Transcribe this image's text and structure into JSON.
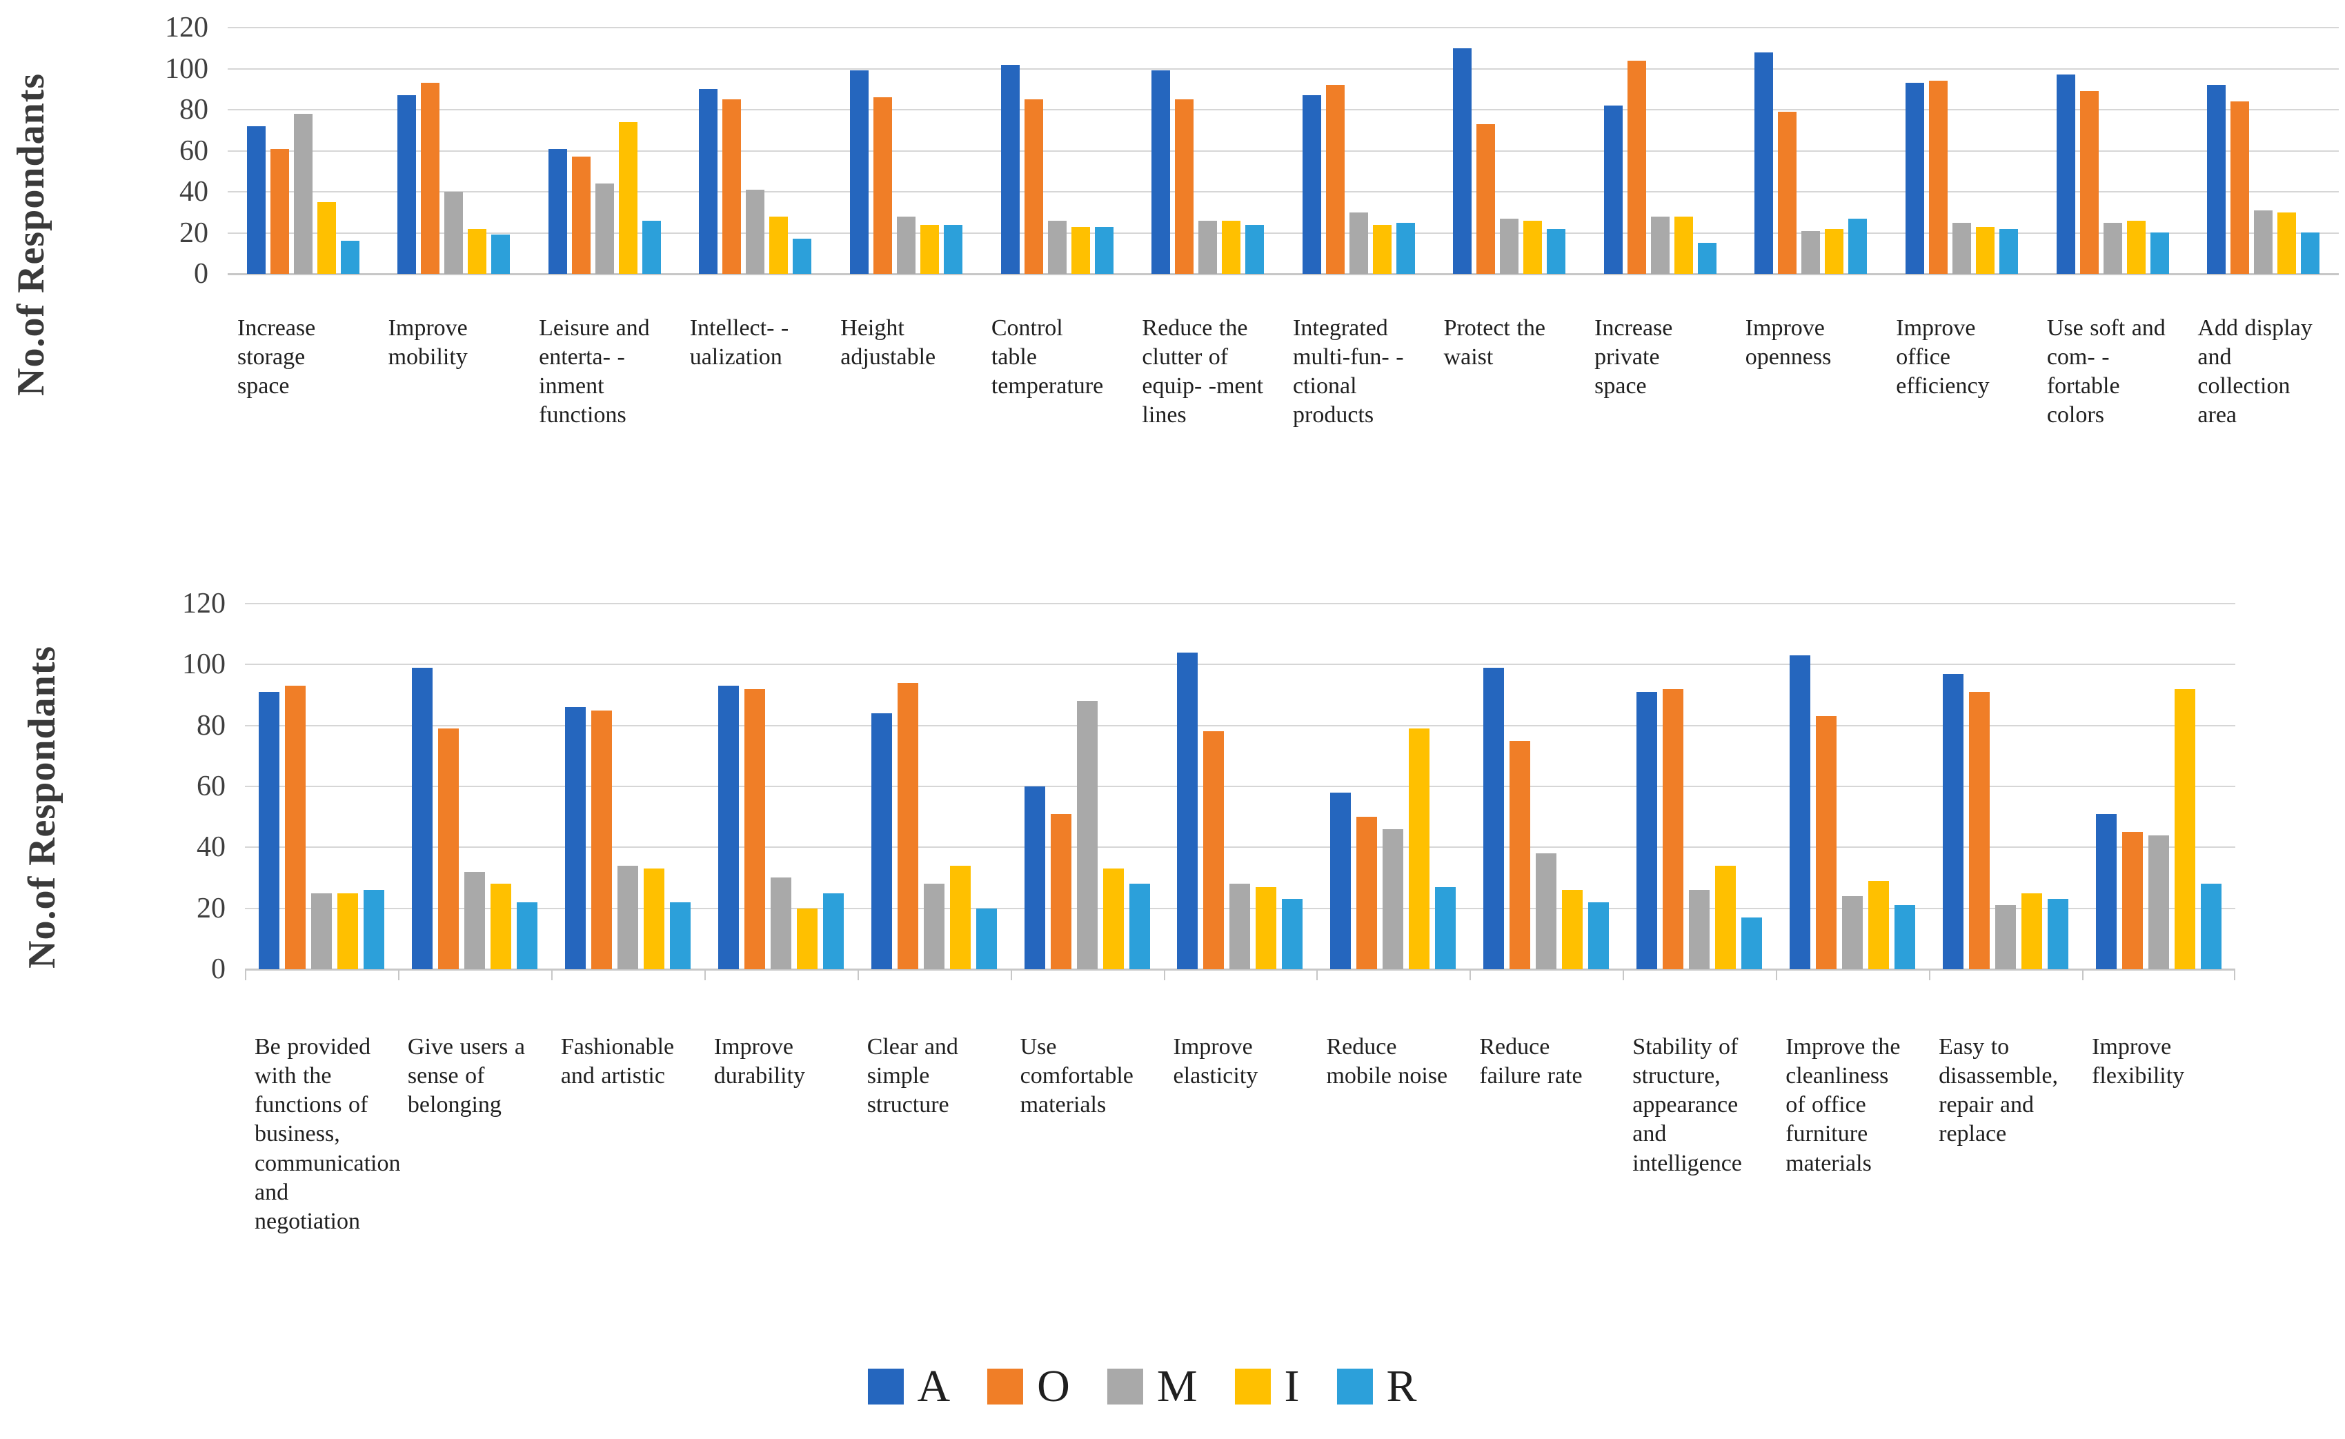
{
  "colors": {
    "grid": "#d6d6d6",
    "axis": "#c7c7c7",
    "text": "#262626"
  },
  "chart_data": [
    {
      "type": "bar",
      "title": "",
      "xlabel": "",
      "ylabel": "No.of Respondants",
      "ylim": [
        0,
        120
      ],
      "yticks": [
        0,
        20,
        40,
        60,
        80,
        100,
        120
      ],
      "grid": true,
      "legend_position": "bottom-shared",
      "categories": [
        "Increase storage space",
        "Improve mobility",
        "Leisure and enterta- -inment functions",
        "Intellect- -ualization",
        "Height adjustable",
        "Control table temperature",
        "Reduce the clutter of equip- -ment lines",
        "Integrated multi-fun- -ctional products",
        "Protect the waist",
        "Increase private space",
        "Improve openness",
        "Improve office efficiency",
        "Use soft and com- -fortable colors",
        "Add display and collection area"
      ],
      "series": [
        {
          "name": "A",
          "color": "#2566be",
          "values": [
            72,
            87,
            61,
            90,
            99,
            102,
            99,
            87,
            110,
            82,
            108,
            93,
            97,
            92
          ]
        },
        {
          "name": "O",
          "color": "#f07e27",
          "values": [
            61,
            93,
            57,
            85,
            86,
            85,
            85,
            92,
            73,
            104,
            79,
            94,
            89,
            84
          ]
        },
        {
          "name": "M",
          "color": "#a9a9a9",
          "values": [
            78,
            40,
            44,
            41,
            28,
            26,
            26,
            30,
            27,
            28,
            21,
            25,
            25,
            31
          ]
        },
        {
          "name": "I",
          "color": "#ffc000",
          "values": [
            35,
            22,
            74,
            28,
            24,
            23,
            26,
            24,
            26,
            28,
            22,
            23,
            26,
            30
          ]
        },
        {
          "name": "R",
          "color": "#2ca0da",
          "values": [
            16,
            19,
            26,
            17,
            24,
            23,
            24,
            25,
            22,
            15,
            27,
            22,
            20,
            20
          ]
        }
      ]
    },
    {
      "type": "bar",
      "title": "",
      "xlabel": "",
      "ylabel": "No.of Respondants",
      "ylim": [
        0,
        120
      ],
      "yticks": [
        0,
        20,
        40,
        60,
        80,
        100,
        120
      ],
      "grid": true,
      "legend_position": "bottom-shared",
      "categories": [
        "Be provided with the functions of business, communication and negotiation",
        "Give users a sense of belonging",
        "Fashionable and artistic",
        "Improve durability",
        "Clear and simple structure",
        "Use comfortable materials",
        "Improve elasticity",
        "Reduce mobile noise",
        "Reduce failure rate",
        "Stability of structure, appearance and intelligence",
        "Improve the cleanliness of office furniture materials",
        "Easy to disassemble, repair and replace",
        "Improve flexibility"
      ],
      "series": [
        {
          "name": "A",
          "color": "#2566be",
          "values": [
            91,
            99,
            86,
            93,
            84,
            60,
            104,
            58,
            99,
            91,
            103,
            97,
            51
          ]
        },
        {
          "name": "O",
          "color": "#f07e27",
          "values": [
            93,
            79,
            85,
            92,
            94,
            51,
            78,
            50,
            75,
            92,
            83,
            91,
            45
          ]
        },
        {
          "name": "M",
          "color": "#a9a9a9",
          "values": [
            25,
            32,
            34,
            30,
            28,
            88,
            28,
            46,
            38,
            26,
            24,
            21,
            44
          ]
        },
        {
          "name": "I",
          "color": "#ffc000",
          "values": [
            25,
            28,
            33,
            20,
            34,
            33,
            27,
            79,
            26,
            34,
            29,
            25,
            92
          ]
        },
        {
          "name": "R",
          "color": "#2ca0da",
          "values": [
            26,
            22,
            22,
            25,
            20,
            28,
            23,
            27,
            22,
            17,
            21,
            23,
            28
          ]
        }
      ]
    }
  ],
  "legend": {
    "items": [
      {
        "label": "A",
        "color": "#2566be"
      },
      {
        "label": "O",
        "color": "#f07e27"
      },
      {
        "label": "M",
        "color": "#a9a9a9"
      },
      {
        "label": "I",
        "color": "#ffc000"
      },
      {
        "label": "R",
        "color": "#2ca0da"
      }
    ]
  }
}
